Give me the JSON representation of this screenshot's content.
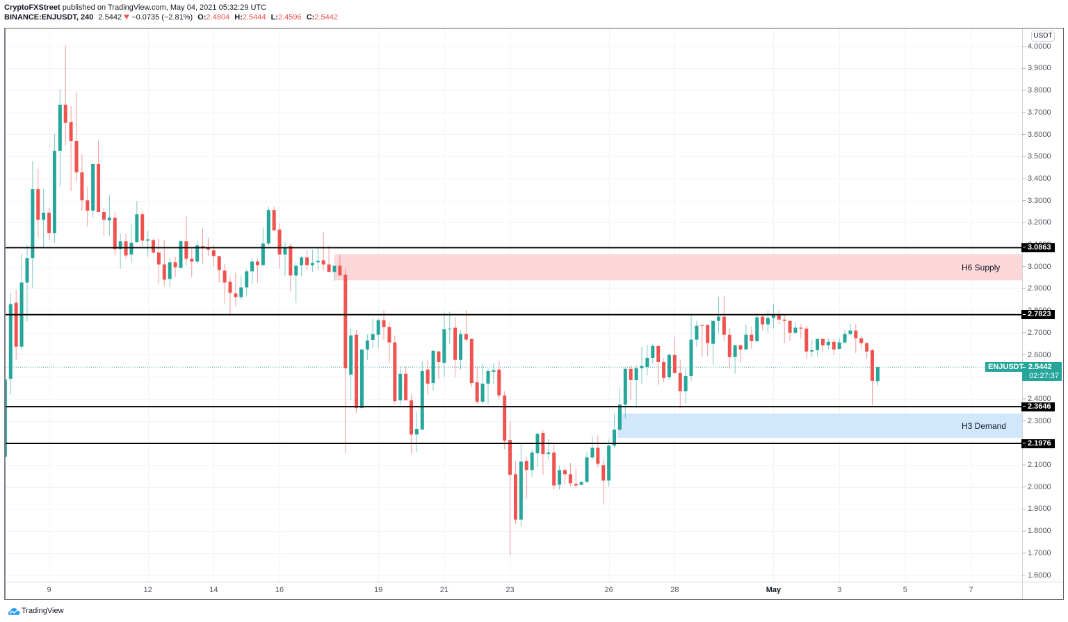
{
  "header": {
    "publisher": "CryptoFXStreet",
    "published_text": "published on TradingView.com, May 04, 2021 05:32:29 UTC",
    "symbol": "BINANCE:ENJUSDT, 240",
    "last_price": "2.5442",
    "change_direction_icon": "down-triangle",
    "change": "−0.0735 (−2.81%)",
    "ohlc": {
      "o_label": "O:",
      "o": "2.4804",
      "h_label": "H:",
      "h": "2.5444",
      "l_label": "L:",
      "l": "2.4596",
      "c_label": "C:",
      "c": "2.5442"
    }
  },
  "price_axis": {
    "currency": "USDT"
  },
  "current_price": {
    "symbol": "ENJUSDT",
    "price": "2.5442",
    "countdown": "02:27:37"
  },
  "footer": {
    "brand": "TradingView",
    "logo_icon": "tradingview-logo"
  },
  "colors": {
    "up": "#26a69a",
    "down": "#ef5350",
    "level": "#000000",
    "grid": "#f0f3fa",
    "axis_line": "#d1d4dc",
    "current_price": "#26a69a",
    "supply_zone": "#fcd7d9",
    "demand_zone": "#d1e7fc"
  },
  "chart_data": {
    "type": "candlestick",
    "title": "BINANCE:ENJUSDT, 240",
    "xlabel": "",
    "ylabel": "USDT",
    "ylim": [
      1.55,
      4.08
    ],
    "grid": true,
    "y_ticks": [
      "4.0000",
      "3.9000",
      "3.8000",
      "3.7000",
      "3.6000",
      "3.5000",
      "3.4000",
      "3.3000",
      "3.2000",
      "3.1000",
      "3.0000",
      "2.9000",
      "2.8000",
      "2.7000",
      "2.6000",
      "2.5000",
      "2.4000",
      "2.3000",
      "2.2000",
      "2.1000",
      "2.0000",
      "1.9000",
      "1.8000",
      "1.7000",
      "1.6000"
    ],
    "x_ticks": [
      {
        "label": "9",
        "index": 8
      },
      {
        "label": "12",
        "index": 26
      },
      {
        "label": "14",
        "index": 38
      },
      {
        "label": "16",
        "index": 50
      },
      {
        "label": "19",
        "index": 68
      },
      {
        "label": "21",
        "index": 80
      },
      {
        "label": "23",
        "index": 92
      },
      {
        "label": "26",
        "index": 110
      },
      {
        "label": "28",
        "index": 122
      },
      {
        "label": "May",
        "index": 140,
        "month_start": true
      },
      {
        "label": "3",
        "index": 152
      },
      {
        "label": "5",
        "index": 164
      },
      {
        "label": "7",
        "index": 176
      }
    ],
    "levels": [
      "3.0863",
      "2.7823",
      "2.3646",
      "2.1976"
    ],
    "zones": [
      {
        "label": "H6 Supply",
        "kind": "supply",
        "top": 3.056,
        "bottom": 2.938,
        "start_index": 60.0,
        "color": "#fcd7d9"
      },
      {
        "label": "H3 Demand",
        "kind": "demand",
        "top": 2.333,
        "bottom": 2.223,
        "start_index": 111.6,
        "color": "#d1e7fc"
      }
    ],
    "current_price": 2.5442,
    "ohlc_fields": [
      "open",
      "high",
      "low",
      "close"
    ],
    "ohlc": [
      [
        2.137,
        2.782,
        2.105,
        2.488
      ],
      [
        2.491,
        2.881,
        2.419,
        2.83
      ],
      [
        2.836,
        2.896,
        2.577,
        2.637
      ],
      [
        2.637,
        3.058,
        2.621,
        2.928
      ],
      [
        2.928,
        3.099,
        2.751,
        3.039
      ],
      [
        3.039,
        3.478,
        2.903,
        3.352
      ],
      [
        3.352,
        3.444,
        3.131,
        3.213
      ],
      [
        3.213,
        3.352,
        3.083,
        3.245
      ],
      [
        3.245,
        3.267,
        3.121,
        3.153
      ],
      [
        3.153,
        3.602,
        3.108,
        3.526
      ],
      [
        3.526,
        3.805,
        3.365,
        3.735
      ],
      [
        3.735,
        4.004,
        3.551,
        3.653
      ],
      [
        3.656,
        3.729,
        3.343,
        3.57
      ],
      [
        3.57,
        3.792,
        3.387,
        3.428
      ],
      [
        3.428,
        3.51,
        3.251,
        3.301
      ],
      [
        3.301,
        3.362,
        3.181,
        3.254
      ],
      [
        3.254,
        3.469,
        3.222,
        3.466
      ],
      [
        3.466,
        3.573,
        3.248,
        3.248
      ],
      [
        3.248,
        3.267,
        3.14,
        3.213
      ],
      [
        3.21,
        3.324,
        3.14,
        3.222
      ],
      [
        3.222,
        3.248,
        3.051,
        3.08
      ],
      [
        3.08,
        3.15,
        2.991,
        3.115
      ],
      [
        3.115,
        3.15,
        3.036,
        3.051
      ],
      [
        3.055,
        3.191,
        3.02,
        3.108
      ],
      [
        3.112,
        3.298,
        3.108,
        3.238
      ],
      [
        3.238,
        3.257,
        3.093,
        3.118
      ],
      [
        3.118,
        3.162,
        3.045,
        3.124
      ],
      [
        3.121,
        3.127,
        3.058,
        3.064
      ],
      [
        3.064,
        3.127,
        2.922,
        3.01
      ],
      [
        3.01,
        3.121,
        2.912,
        2.941
      ],
      [
        2.944,
        3.039,
        2.909,
        3.02
      ],
      [
        3.02,
        3.045,
        2.953,
        2.998
      ],
      [
        2.994,
        3.121,
        2.994,
        3.115
      ],
      [
        3.115,
        3.229,
        3.004,
        3.036
      ],
      [
        3.036,
        3.086,
        2.953,
        3.023
      ],
      [
        3.023,
        3.118,
        3.013,
        3.096
      ],
      [
        3.093,
        3.175,
        3.013,
        3.086
      ],
      [
        3.086,
        3.131,
        3.048,
        3.077
      ],
      [
        3.074,
        3.099,
        3.001,
        3.048
      ],
      [
        3.048,
        3.048,
        2.928,
        2.985
      ],
      [
        2.982,
        3.013,
        2.833,
        2.928
      ],
      [
        2.931,
        2.95,
        2.783,
        2.881
      ],
      [
        2.878,
        2.972,
        2.821,
        2.862
      ],
      [
        2.862,
        2.96,
        2.849,
        2.906
      ],
      [
        2.906,
        2.988,
        2.865,
        2.979
      ],
      [
        2.979,
        3.039,
        2.922,
        3.023
      ],
      [
        3.023,
        3.036,
        2.928,
        3.007
      ],
      [
        3.007,
        3.178,
        3.004,
        3.105
      ],
      [
        3.105,
        3.273,
        3.096,
        3.257
      ],
      [
        3.257,
        3.273,
        3.162,
        3.165
      ],
      [
        3.168,
        3.197,
        2.991,
        3.055
      ],
      [
        3.055,
        3.112,
        2.957,
        3.086
      ],
      [
        3.093,
        3.105,
        2.887,
        2.96
      ],
      [
        2.96,
        3.02,
        2.836,
        3.004
      ],
      [
        3.007,
        3.048,
        2.957,
        3.042
      ],
      [
        3.042,
        3.074,
        2.982,
        3.007
      ],
      [
        3.007,
        3.077,
        2.976,
        3.017
      ],
      [
        3.02,
        3.083,
        2.982,
        3.026
      ],
      [
        3.029,
        3.156,
        2.982,
        3.01
      ],
      [
        3.01,
        3.093,
        2.976,
        2.976
      ],
      [
        2.976,
        3.004,
        2.935,
        3.004
      ],
      [
        3.004,
        3.055,
        2.96,
        2.96
      ],
      [
        2.963,
        2.991,
        2.153,
        2.539
      ],
      [
        2.51,
        2.719,
        2.393,
        2.688
      ],
      [
        2.691,
        2.713,
        2.336,
        2.359
      ],
      [
        2.359,
        2.628,
        2.355,
        2.624
      ],
      [
        2.624,
        2.691,
        2.577,
        2.665
      ],
      [
        2.668,
        2.764,
        2.631,
        2.694
      ],
      [
        2.691,
        2.764,
        2.631,
        2.757
      ],
      [
        2.757,
        2.802,
        2.668,
        2.726
      ],
      [
        2.726,
        2.748,
        2.561,
        2.656
      ],
      [
        2.656,
        2.688,
        2.377,
        2.39
      ],
      [
        2.393,
        2.548,
        2.371,
        2.514
      ],
      [
        2.514,
        2.548,
        2.393,
        2.393
      ],
      [
        2.393,
        2.422,
        2.15,
        2.238
      ],
      [
        2.238,
        2.343,
        2.159,
        2.264
      ],
      [
        2.261,
        2.571,
        2.257,
        2.526
      ],
      [
        2.533,
        2.577,
        2.419,
        2.469
      ],
      [
        2.472,
        2.621,
        2.438,
        2.618
      ],
      [
        2.615,
        2.618,
        2.491,
        2.567
      ],
      [
        2.564,
        2.792,
        2.501,
        2.716
      ],
      [
        2.716,
        2.795,
        2.65,
        2.719
      ],
      [
        2.723,
        2.77,
        2.498,
        2.577
      ],
      [
        2.577,
        2.71,
        2.533,
        2.694
      ],
      [
        2.694,
        2.802,
        2.659,
        2.669
      ],
      [
        2.672,
        2.672,
        2.453,
        2.472
      ],
      [
        2.475,
        2.548,
        2.377,
        2.387
      ],
      [
        2.387,
        2.561,
        2.374,
        2.469
      ],
      [
        2.469,
        2.539,
        2.374,
        2.526
      ],
      [
        2.523,
        2.561,
        2.466,
        2.53
      ],
      [
        2.533,
        2.574,
        2.4,
        2.415
      ],
      [
        2.415,
        2.434,
        2.172,
        2.21
      ],
      [
        2.213,
        2.298,
        1.691,
        2.055
      ],
      [
        2.058,
        2.118,
        1.83,
        1.852
      ],
      [
        1.852,
        2.194,
        1.821,
        2.115
      ],
      [
        2.118,
        2.137,
        1.947,
        2.077
      ],
      [
        2.077,
        2.169,
        2.045,
        2.156
      ],
      [
        2.153,
        2.248,
        2.09,
        2.241
      ],
      [
        2.245,
        2.257,
        2.055,
        2.15
      ],
      [
        2.15,
        2.216,
        2.124,
        2.156
      ],
      [
        2.156,
        2.194,
        1.988,
        2.007
      ],
      [
        2.01,
        2.096,
        1.988,
        2.077
      ],
      [
        2.077,
        2.09,
        2.01,
        2.058
      ],
      [
        2.058,
        2.109,
        2.001,
        2.017
      ],
      [
        2.014,
        2.083,
        1.998,
        2.007
      ],
      [
        2.01,
        2.026,
        2.007,
        2.023
      ],
      [
        2.023,
        2.159,
        2.02,
        2.134
      ],
      [
        2.134,
        2.229,
        2.124,
        2.178
      ],
      [
        2.178,
        2.235,
        2.09,
        2.105
      ],
      [
        2.099,
        2.124,
        1.919,
        2.029
      ],
      [
        2.029,
        2.216,
        2.001,
        2.188
      ],
      [
        2.188,
        2.333,
        2.175,
        2.26
      ],
      [
        2.26,
        2.45,
        2.254,
        2.374
      ],
      [
        2.374,
        2.545,
        2.311,
        2.536
      ],
      [
        2.536,
        2.552,
        2.396,
        2.485
      ],
      [
        2.485,
        2.552,
        2.358,
        2.539
      ],
      [
        2.539,
        2.637,
        2.469,
        2.549
      ],
      [
        2.545,
        2.646,
        2.507,
        2.586
      ],
      [
        2.586,
        2.65,
        2.561,
        2.64
      ],
      [
        2.64,
        2.643,
        2.463,
        2.567
      ],
      [
        2.567,
        2.583,
        2.475,
        2.495
      ],
      [
        2.498,
        2.605,
        2.485,
        2.599
      ],
      [
        2.599,
        2.681,
        2.514,
        2.517
      ],
      [
        2.517,
        2.577,
        2.358,
        2.434
      ],
      [
        2.434,
        2.539,
        2.381,
        2.504
      ],
      [
        2.504,
        2.782,
        2.482,
        2.669
      ],
      [
        2.669,
        2.754,
        2.637,
        2.732
      ],
      [
        2.735,
        2.735,
        2.59,
        2.732
      ],
      [
        2.735,
        2.738,
        2.593,
        2.653
      ],
      [
        2.65,
        2.754,
        2.555,
        2.754
      ],
      [
        2.754,
        2.862,
        2.697,
        2.773
      ],
      [
        2.773,
        2.868,
        2.659,
        2.691
      ],
      [
        2.691,
        2.723,
        2.536,
        2.59
      ],
      [
        2.59,
        2.646,
        2.514,
        2.643
      ],
      [
        2.643,
        2.646,
        2.564,
        2.624
      ],
      [
        2.624,
        2.738,
        2.624,
        2.691
      ],
      [
        2.691,
        2.729,
        2.627,
        2.662
      ],
      [
        2.662,
        2.782,
        2.656,
        2.77
      ],
      [
        2.773,
        2.782,
        2.71,
        2.738
      ],
      [
        2.738,
        2.802,
        2.7,
        2.767
      ],
      [
        2.767,
        2.83,
        2.719,
        2.786
      ],
      [
        2.786,
        2.802,
        2.738,
        2.76
      ],
      [
        2.76,
        2.786,
        2.653,
        2.754
      ],
      [
        2.754,
        2.757,
        2.662,
        2.7
      ],
      [
        2.7,
        2.748,
        2.694,
        2.723
      ],
      [
        2.723,
        2.738,
        2.675,
        2.719
      ],
      [
        2.719,
        2.732,
        2.583,
        2.615
      ],
      [
        2.615,
        2.669,
        2.59,
        2.621
      ],
      [
        2.621,
        2.672,
        2.59,
        2.672
      ],
      [
        2.672,
        2.675,
        2.612,
        2.643
      ],
      [
        2.643,
        2.675,
        2.624,
        2.659
      ],
      [
        2.659,
        2.672,
        2.599,
        2.624
      ],
      [
        2.627,
        2.672,
        2.624,
        2.656
      ],
      [
        2.656,
        2.713,
        2.65,
        2.694
      ],
      [
        2.694,
        2.741,
        2.688,
        2.71
      ],
      [
        2.71,
        2.738,
        2.608,
        2.675
      ],
      [
        2.675,
        2.684,
        2.627,
        2.653
      ],
      [
        2.653,
        2.656,
        2.583,
        2.615
      ],
      [
        2.621,
        2.627,
        2.371,
        2.482
      ],
      [
        2.4804,
        2.5444,
        2.4596,
        2.5442
      ]
    ]
  }
}
